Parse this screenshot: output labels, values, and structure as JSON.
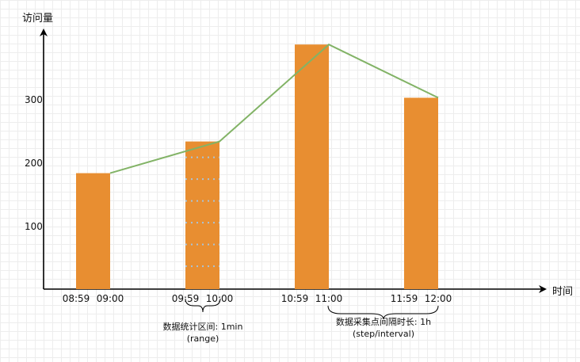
{
  "chart_data": {
    "type": "bar",
    "ylabel": "访问量",
    "xlabel": "时间",
    "ylim": [
      0,
      400
    ],
    "yticks": [
      100,
      200,
      300
    ],
    "bar_color": "#e88e31",
    "line_color": "#82b366",
    "bars": [
      {
        "start": "08:59",
        "end": "09:00",
        "value": 183
      },
      {
        "start": "09:59",
        "end": "10:00",
        "value": 233
      },
      {
        "start": "10:59",
        "end": "11:00",
        "value": 386
      },
      {
        "start": "11:59",
        "end": "12:00",
        "value": 302
      }
    ],
    "line_values": [
      183,
      233,
      386,
      302
    ]
  },
  "annotations": {
    "range_label": "数据统计区间: 1min",
    "range_sub": "(range)",
    "step_label": "数据采集点间隔时长: 1h",
    "step_sub": "(step/interval)"
  }
}
